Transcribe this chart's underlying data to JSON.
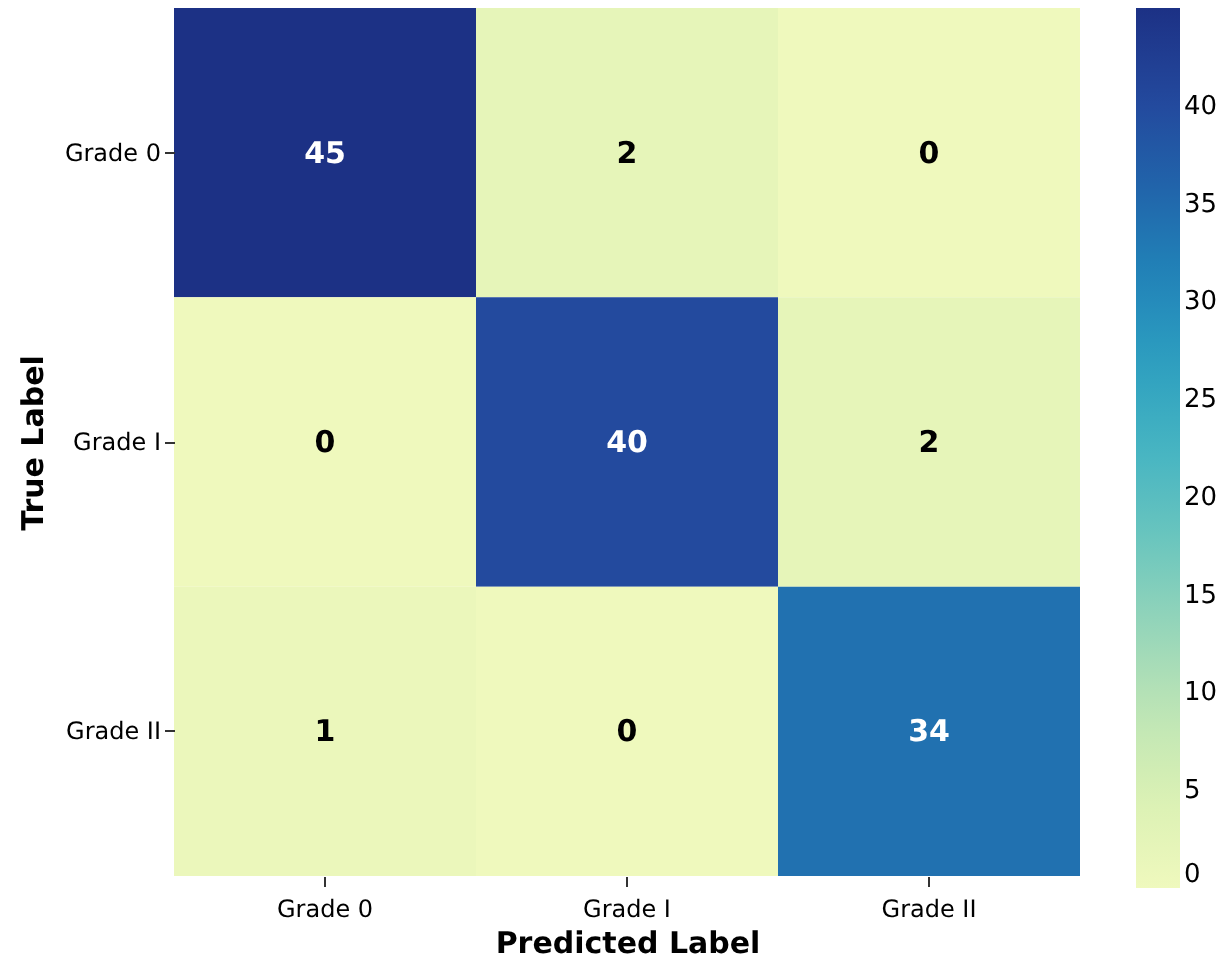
{
  "chart_data": {
    "type": "heatmap",
    "xlabel": "Predicted Label",
    "ylabel": "True Label",
    "categories": [
      "Grade 0",
      "Grade I",
      "Grade II"
    ],
    "y_categories": [
      "Grade 0",
      "Grade I",
      "Grade II"
    ],
    "cells": [
      [
        45,
        2,
        0
      ],
      [
        0,
        40,
        2
      ],
      [
        1,
        0,
        34
      ]
    ],
    "clim": [
      0,
      45
    ],
    "cticks": [
      0,
      5,
      10,
      15,
      20,
      25,
      30,
      35,
      40
    ],
    "data_labels": true
  }
}
